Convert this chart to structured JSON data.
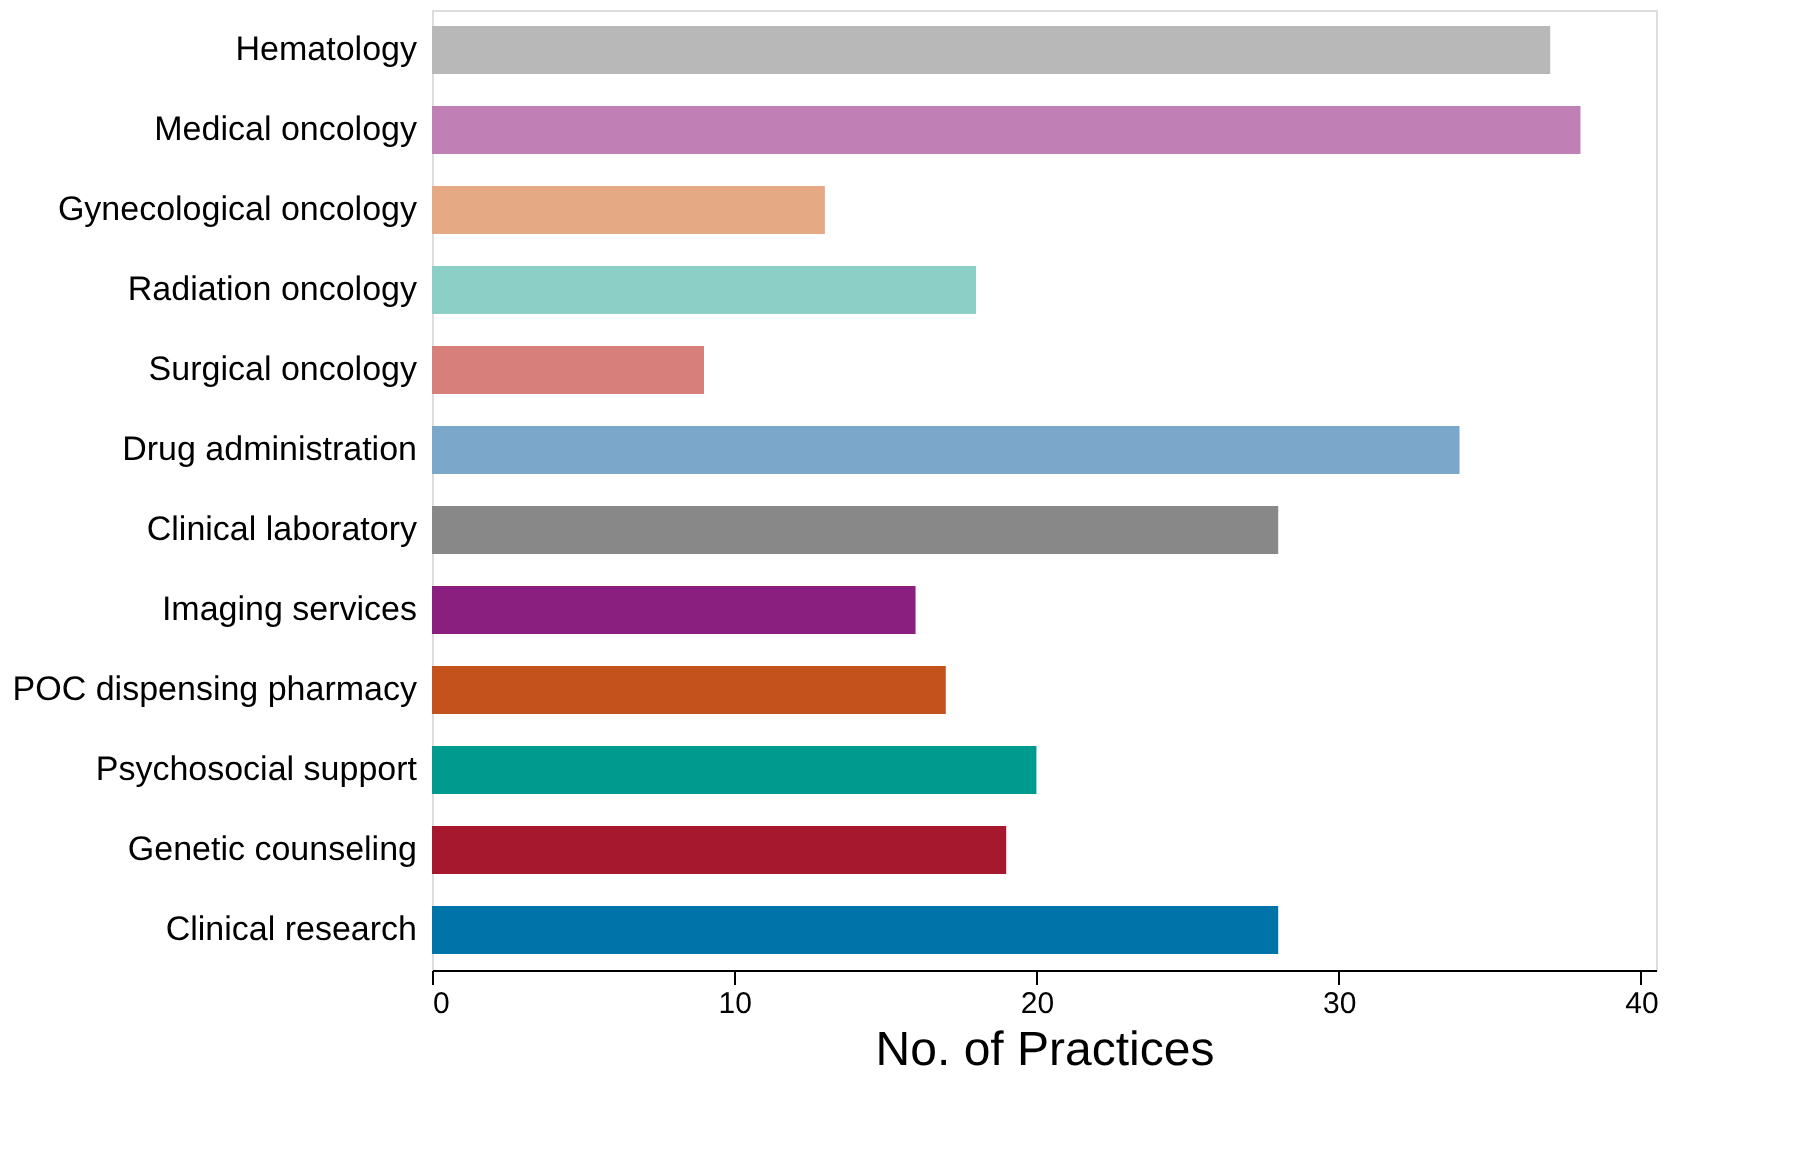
{
  "chart_data": {
    "type": "bar",
    "orientation": "horizontal",
    "xlabel": "No. of Practices",
    "categories": [
      "Hematology",
      "Medical oncology",
      "Gynecological oncology",
      "Radiation oncology",
      "Surgical oncology",
      "Drug administration",
      "Clinical laboratory",
      "Imaging services",
      "POC dispensing pharmacy",
      "Psychosocial support",
      "Genetic counseling",
      "Clinical research"
    ],
    "values": [
      37,
      38,
      13,
      18,
      9,
      34,
      28,
      16,
      17,
      20,
      19,
      28
    ],
    "colors": [
      "#b8b8b8",
      "#c07fb5",
      "#e5a984",
      "#8bcfc6",
      "#d67f7b",
      "#7ba7cb",
      "#888888",
      "#8b1f7f",
      "#c4521d",
      "#009b8f",
      "#a6182d",
      "#0073a8"
    ],
    "xlim": [
      0,
      40.5
    ],
    "xticks": [
      0,
      10,
      20,
      30,
      40
    ],
    "grid": false
  }
}
